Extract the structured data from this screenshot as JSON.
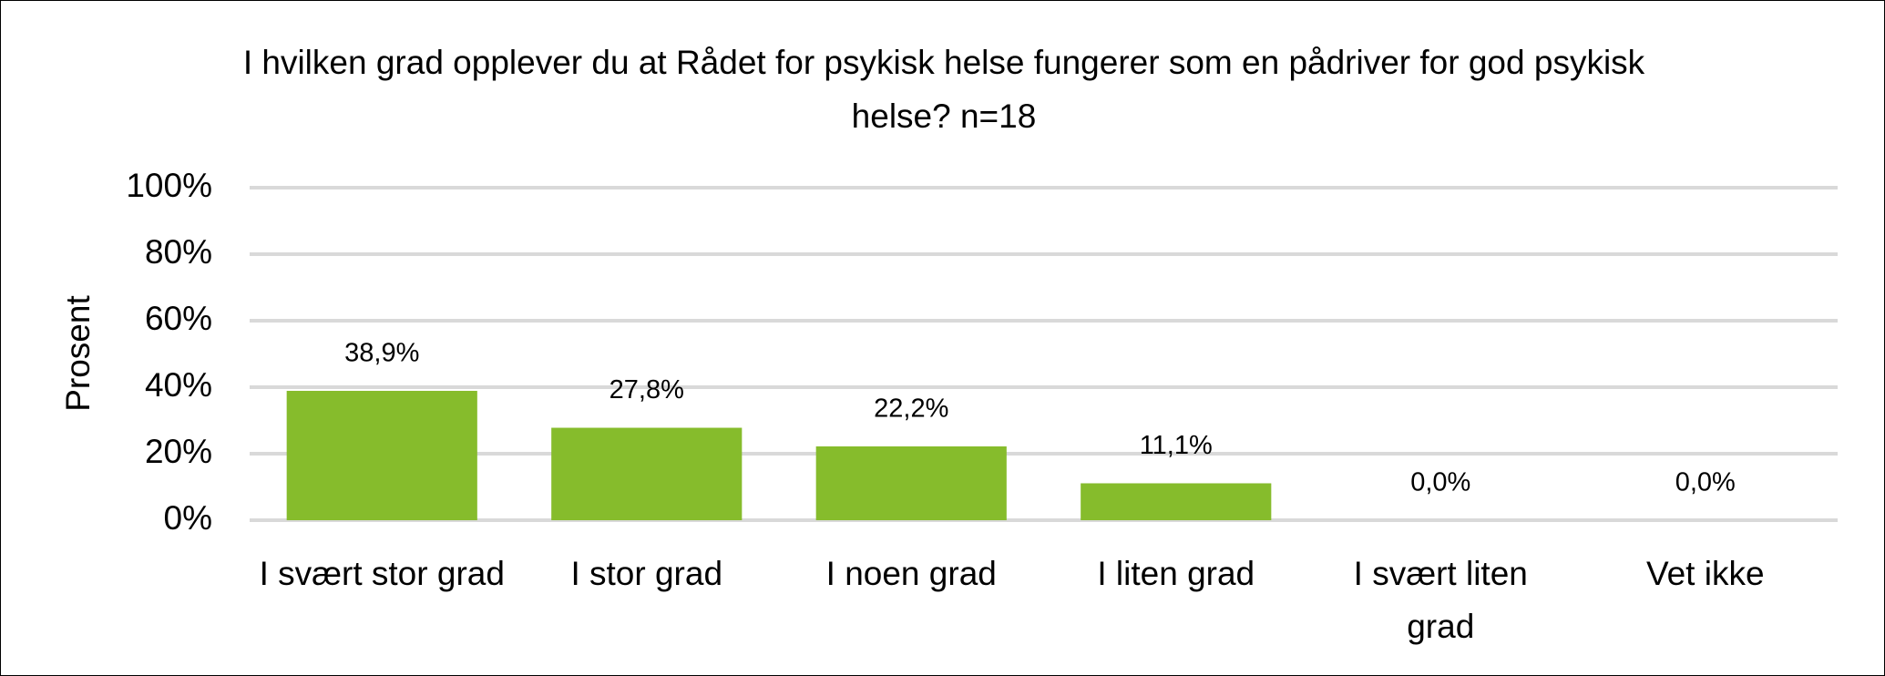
{
  "chart_data": {
    "type": "bar",
    "title": "I hvilken grad opplever du at Rådet for psykisk helse fungerer som en pådriver for god psykisk helse? n=18",
    "y_label": "Prosent",
    "categories": [
      "I svært stor grad",
      "I stor grad",
      "I noen grad",
      "I liten grad",
      "I svært liten grad",
      "Vet ikke"
    ],
    "values": [
      38.9,
      27.8,
      22.2,
      11.1,
      0.0,
      0.0
    ],
    "value_labels": [
      "38,9%",
      "27,8%",
      "22,2%",
      "11,1%",
      "0,0%",
      "0,0%"
    ],
    "color": "#86bc2c",
    "ylim": [
      0,
      100
    ],
    "yticks": [
      {
        "value": 0,
        "label": "0%"
      },
      {
        "value": 20,
        "label": "20%"
      },
      {
        "value": 40,
        "label": "40%"
      },
      {
        "value": 60,
        "label": "60%"
      },
      {
        "value": 80,
        "label": "80%"
      },
      {
        "value": 100,
        "label": "100%"
      }
    ],
    "grid": true
  }
}
